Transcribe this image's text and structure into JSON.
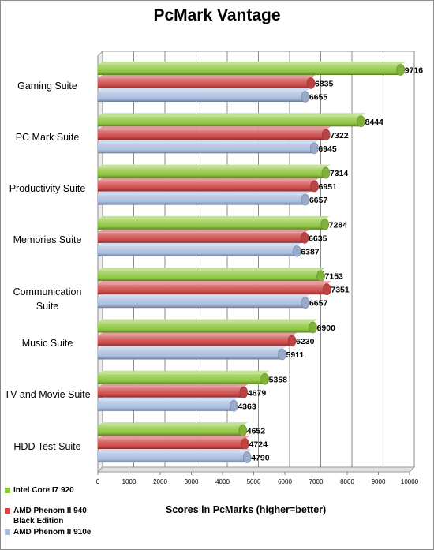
{
  "chart_data": {
    "type": "bar",
    "orientation": "horizontal",
    "title": "PcMark Vantage",
    "xlabel": "Scores in PcMarks (higher=better)",
    "ylabel": "",
    "xlim": [
      0,
      10000
    ],
    "xticks": [
      "0",
      "1000",
      "2000",
      "3000",
      "4000",
      "5000",
      "6000",
      "7000",
      "8000",
      "9000",
      "10000"
    ],
    "grid": true,
    "legend_position": "bottom-left",
    "categories": [
      "Gaming Suite",
      "PC Mark Suite",
      "Productivity Suite",
      "Memories Suite",
      "Communication Suite",
      "Music Suite",
      "TV and Movie Suite",
      "HDD Test Suite"
    ],
    "series": [
      {
        "name": "Intel Core I7 920",
        "color": "#8ec63f",
        "values": [
          9716,
          8444,
          7314,
          7284,
          7153,
          6900,
          5358,
          4652
        ]
      },
      {
        "name": "AMD Phenom II 940 Black Edition",
        "color": "#cf4a4a",
        "values": [
          6835,
          7322,
          6951,
          6635,
          7351,
          6230,
          4679,
          4724
        ]
      },
      {
        "name": "AMD Phenom II 910e",
        "color": "#a9bde0",
        "values": [
          6655,
          6945,
          6657,
          6387,
          6657,
          5911,
          4363,
          4790
        ]
      }
    ]
  }
}
